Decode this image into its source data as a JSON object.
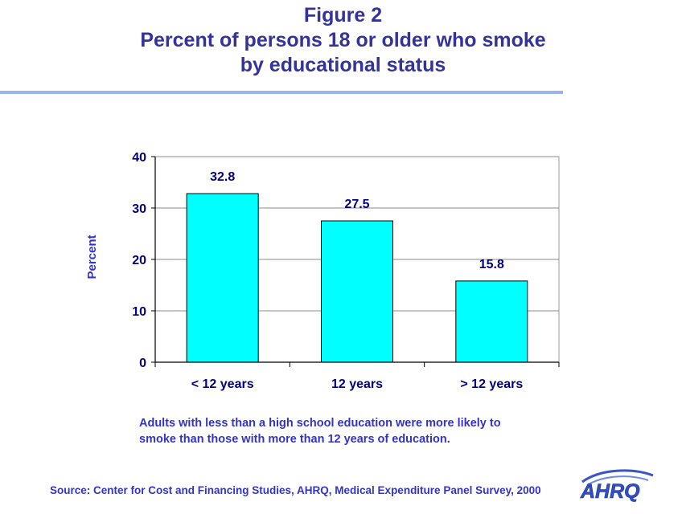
{
  "header": {
    "title_line1": "Figure 2",
    "title_line2": "Percent of persons 18 or older who smoke",
    "title_line3": "by educational status"
  },
  "chart_data": {
    "type": "bar",
    "categories": [
      "< 12 years",
      "12 years",
      "> 12 years"
    ],
    "values": [
      32.8,
      27.5,
      15.8
    ],
    "value_labels": [
      "32.8",
      "27.5",
      "15.8"
    ],
    "xlabel": "",
    "ylabel": "Percent",
    "ylim": [
      0,
      40
    ],
    "yticks": [
      "0",
      "10",
      "20",
      "30",
      "40"
    ],
    "grid": true,
    "legend": "none",
    "bar_color": "#00ffff"
  },
  "note": {
    "line1": "Adults with  less than a high school education were more likely to",
    "line2": "smoke than those with more than 12 years of education."
  },
  "footer": {
    "source": "Source: Center for Cost and Financing Studies, AHRQ, Medical Expenditure Panel Survey, 2000",
    "logo_text": "AHRQ"
  },
  "colors": {
    "title": "#33339a",
    "text_accent": "#3333cc",
    "bar_fill": "#00ffff",
    "rule": "#99b4ea"
  }
}
